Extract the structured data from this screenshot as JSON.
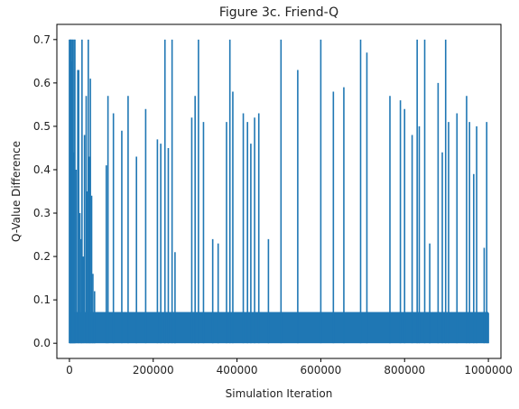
{
  "chart_data": {
    "type": "line",
    "title": "Figure 3c. Friend-Q",
    "xlabel": "Simulation Iteration",
    "ylabel": "Q-Value Difference",
    "xlim": [
      -30000,
      1030000
    ],
    "ylim": [
      -0.035,
      0.735
    ],
    "xticks": [
      0,
      200000,
      400000,
      600000,
      800000,
      1000000
    ],
    "xtick_labels": [
      "0",
      "200000",
      "400000",
      "600000",
      "800000",
      "1000000"
    ],
    "yticks": [
      0.0,
      0.1,
      0.2,
      0.3,
      0.4,
      0.5,
      0.6,
      0.7
    ],
    "ytick_labels": [
      "0.0",
      "0.1",
      "0.2",
      "0.3",
      "0.4",
      "0.5",
      "0.6",
      "0.7"
    ],
    "grid": false,
    "line_color": "#1f77b4",
    "baseline_band": {
      "x_start": 0,
      "x_end": 1000000,
      "y_min": 0.0,
      "y_max": 0.072
    },
    "series": [
      {
        "x": [
          0,
          2000,
          4000,
          6000,
          8000,
          10000,
          13000,
          16000,
          20000,
          22000,
          25000,
          28000,
          30000,
          33000,
          36000,
          40000,
          42000,
          45000,
          48000,
          50000,
          53000,
          56000,
          60000,
          88000,
          92000,
          105000,
          125000,
          140000,
          160000,
          182000,
          210000,
          218000,
          228000,
          236000,
          245000,
          252000,
          292000,
          300000,
          308000,
          320000,
          342000,
          355000,
          375000,
          383000,
          390000,
          415000,
          425000,
          433000,
          442000,
          452000,
          475000,
          505000,
          545000,
          600000,
          630000,
          655000,
          695000,
          710000,
          765000,
          790000,
          800000,
          818000,
          830000,
          835000,
          848000,
          860000,
          880000,
          890000,
          898000,
          905000,
          925000,
          948000,
          955000,
          965000,
          972000,
          990000,
          996000,
          1000000
        ],
        "y": [
          0.7,
          0.7,
          0.7,
          0.65,
          0.7,
          0.44,
          0.7,
          0.4,
          0.63,
          0.63,
          0.3,
          0.24,
          0.7,
          0.2,
          0.48,
          0.57,
          0.35,
          0.7,
          0.43,
          0.61,
          0.34,
          0.16,
          0.12,
          0.41,
          0.57,
          0.53,
          0.49,
          0.57,
          0.43,
          0.54,
          0.47,
          0.46,
          0.7,
          0.45,
          0.7,
          0.21,
          0.52,
          0.57,
          0.7,
          0.51,
          0.24,
          0.23,
          0.51,
          0.7,
          0.58,
          0.53,
          0.51,
          0.46,
          0.52,
          0.53,
          0.24,
          0.7,
          0.63,
          0.7,
          0.58,
          0.59,
          0.7,
          0.67,
          0.57,
          0.56,
          0.54,
          0.48,
          0.7,
          0.5,
          0.7,
          0.23,
          0.6,
          0.44,
          0.7,
          0.51,
          0.53,
          0.57,
          0.51,
          0.39,
          0.5,
          0.22,
          0.51,
          0.07
        ]
      }
    ]
  }
}
